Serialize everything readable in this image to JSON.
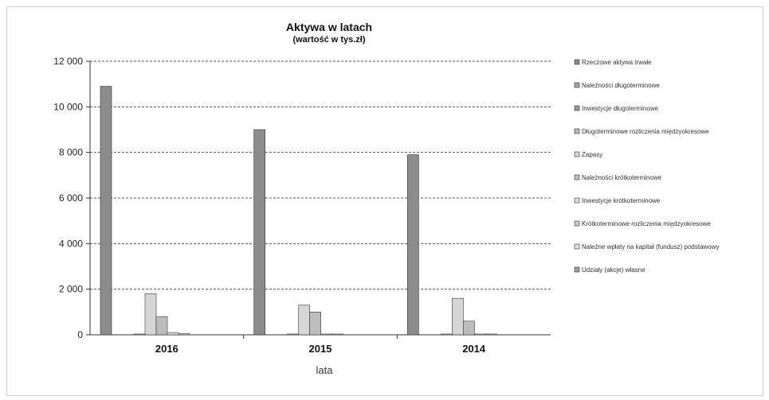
{
  "chart_data": {
    "type": "bar",
    "title": "Aktywa w latach",
    "subtitle": "(wartość w tys.zł)",
    "xlabel": "lata",
    "ylabel": "",
    "ylim": [
      0,
      12000
    ],
    "yticks": [
      0,
      2000,
      4000,
      6000,
      8000,
      10000,
      12000
    ],
    "ytick_labels": [
      "0",
      "2 000",
      "4 000",
      "6 000",
      "8 000",
      "10 000",
      "12 000"
    ],
    "grid": true,
    "legend_position": "right",
    "categories": [
      "2016",
      "2015",
      "2014"
    ],
    "series": [
      {
        "name": "Rzeczowe aktywa trwałe",
        "values": [
          10900,
          9000,
          7900
        ],
        "color": "#8c8c8c"
      },
      {
        "name": "Należności długoterminowe",
        "values": [
          0,
          0,
          0
        ],
        "color": "#a6a6a6"
      },
      {
        "name": "Inwestycje długoterminowe",
        "values": [
          0,
          0,
          0
        ],
        "color": "#9a9a9a"
      },
      {
        "name": "Długoterminowe rozliczenia międzyokresowe",
        "values": [
          30,
          30,
          30
        ],
        "color": "#b8b8b8"
      },
      {
        "name": "Zapasy",
        "values": [
          1800,
          1300,
          1600
        ],
        "color": "#d6d6d6"
      },
      {
        "name": "Należności krótkoterminowe",
        "values": [
          800,
          1000,
          600
        ],
        "color": "#bdbdbd"
      },
      {
        "name": "Inwestycje krótkoterminowe",
        "values": [
          100,
          30,
          30
        ],
        "color": "#dcdcdc"
      },
      {
        "name": "Krótkoterminowe rozliczenia międzyokresowe",
        "values": [
          50,
          20,
          20
        ],
        "color": "#c8c8c8"
      },
      {
        "name": "Należne wpłaty na kapitał (fundusz) podstawowy",
        "values": [
          0,
          0,
          0
        ],
        "color": "#e0e0e0"
      },
      {
        "name": "Udziały (akcje) własne",
        "values": [
          0,
          0,
          0
        ],
        "color": "#9e9e9e"
      }
    ]
  }
}
